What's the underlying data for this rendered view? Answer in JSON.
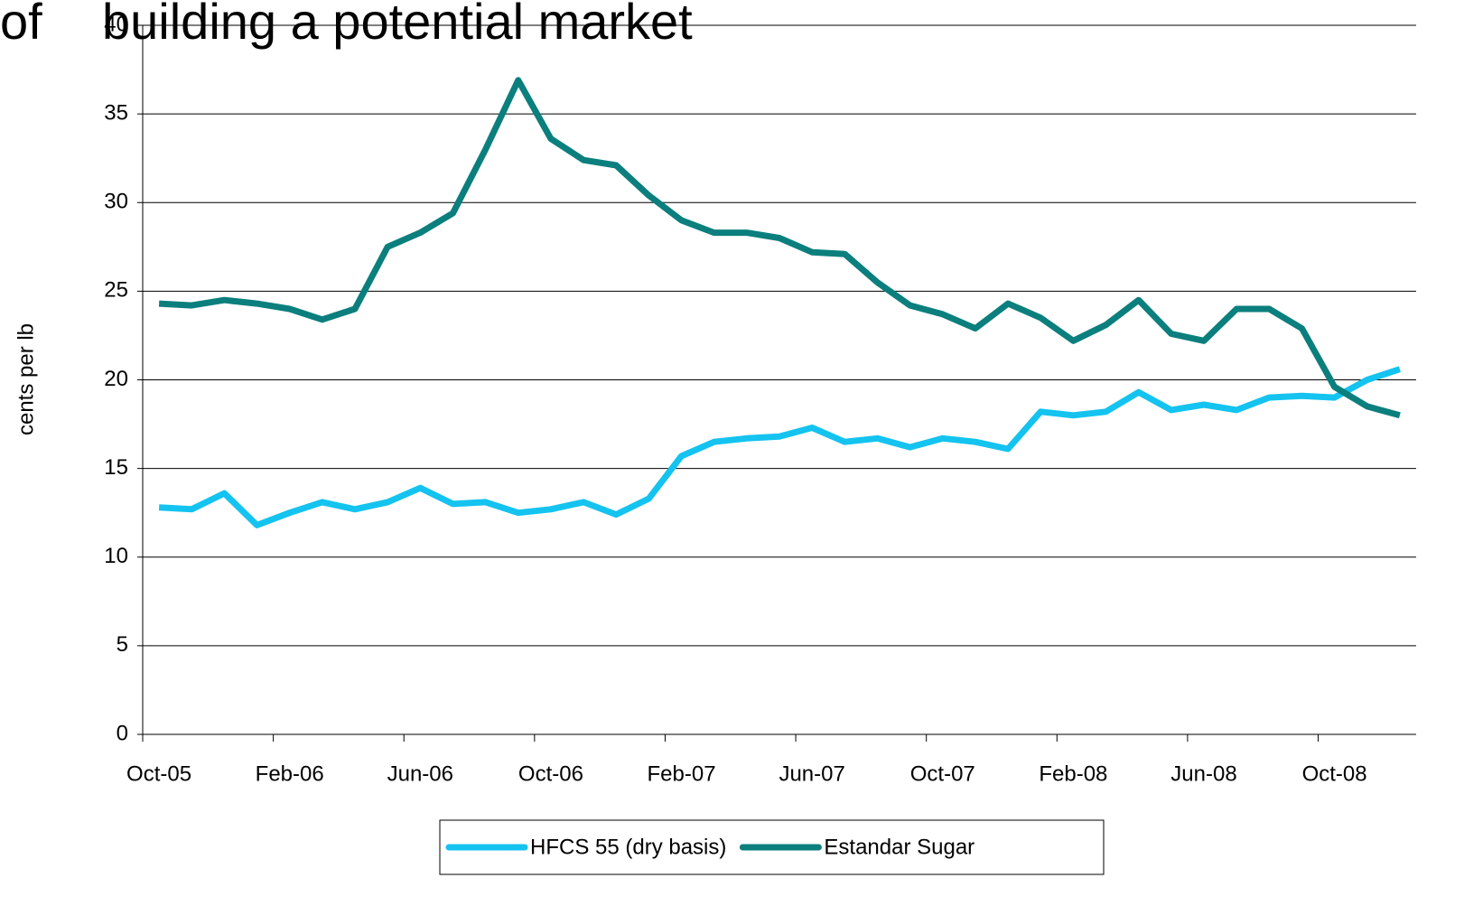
{
  "chart_data": {
    "type": "line",
    "title_left": "of",
    "title": "building a potential market",
    "y_label": "cents per lb",
    "categories": [
      "Oct-05",
      null,
      null,
      null,
      "Feb-06",
      null,
      null,
      null,
      "Jun-06",
      null,
      null,
      null,
      "Oct-06",
      null,
      null,
      null,
      "Feb-07",
      null,
      null,
      null,
      "Jun-07",
      null,
      null,
      null,
      "Oct-07",
      null,
      null,
      null,
      "Feb-08",
      null,
      null,
      null,
      "Jun-08",
      null,
      null,
      null,
      "Oct-08",
      null,
      null
    ],
    "series": [
      {
        "name": "HFCS 55 (dry basis)",
        "color": "#14c3ef",
        "values": [
          12.8,
          12.7,
          13.6,
          11.8,
          12.5,
          13.1,
          12.7,
          13.1,
          13.9,
          13.0,
          13.1,
          12.5,
          12.7,
          13.1,
          12.4,
          13.3,
          15.7,
          16.5,
          16.7,
          16.8,
          17.3,
          16.5,
          16.7,
          16.2,
          16.7,
          16.5,
          16.1,
          18.2,
          18.0,
          18.2,
          19.3,
          18.3,
          18.6,
          18.3,
          19.0,
          19.1,
          19.0,
          20.0,
          20.6
        ]
      },
      {
        "name": "Estandar Sugar",
        "color": "#0b7f7d",
        "values": [
          24.3,
          24.2,
          24.5,
          24.3,
          24.0,
          23.4,
          24.0,
          27.5,
          28.3,
          29.4,
          33.0,
          36.9,
          33.6,
          32.4,
          32.1,
          30.4,
          29.0,
          28.3,
          28.3,
          28.0,
          27.2,
          27.1,
          25.5,
          24.2,
          23.7,
          22.9,
          24.3,
          23.5,
          22.2,
          23.1,
          24.5,
          22.6,
          22.2,
          24.0,
          24.0,
          22.9,
          19.6,
          18.5,
          18.0
        ]
      }
    ],
    "ylim": [
      0,
      40
    ],
    "yticks": [
      0,
      5,
      10,
      15,
      20,
      25,
      30,
      35,
      40
    ],
    "grid": true,
    "title_color": "#8dbe1e",
    "legend": "bottom"
  }
}
